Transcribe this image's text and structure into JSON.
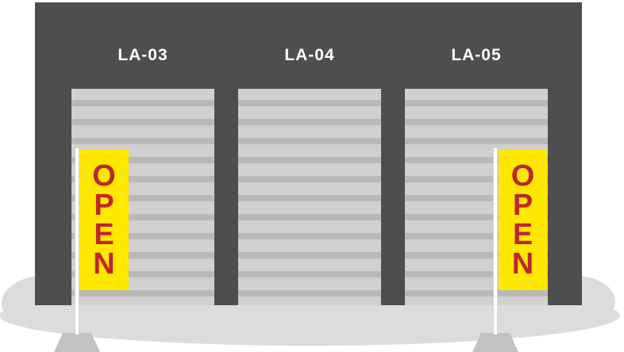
{
  "scene": {
    "description": "storage facility facade with three shutter units and open flags",
    "colors": {
      "background_color": "#ffffff",
      "facade_color": "#4e4e4e",
      "door_color": "#d0d0d0",
      "door_stripe_color": "#b9b9b9",
      "ground_color": "#dcdcdc",
      "banner_color": "#ffe800",
      "banner_text_color": "#c2242e",
      "pole_color": "#ffffff",
      "base_color": "#c2c2c2",
      "label_color": "#ffffff"
    }
  },
  "units": [
    {
      "label": "LA-03",
      "open_flag": true
    },
    {
      "label": "LA-04",
      "open_flag": false
    },
    {
      "label": "LA-05",
      "open_flag": true
    }
  ],
  "flags": {
    "open_label": "OPEN"
  }
}
